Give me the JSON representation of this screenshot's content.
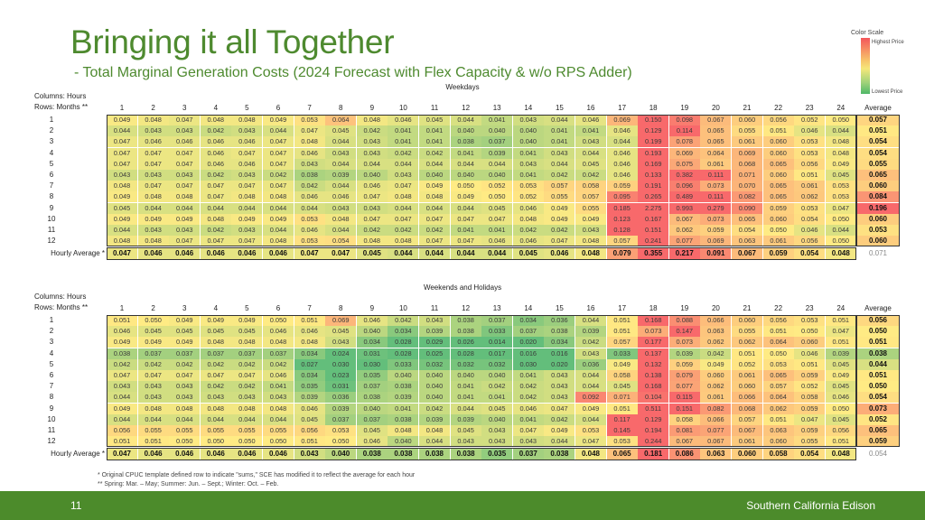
{
  "title": "Bringing it all Together",
  "subtitle": "- Total Marginal Generation Costs (2024 Forecast with Flex Capacity & w/o RPS Adder)",
  "legend": {
    "title": "Color Scale",
    "high": "Highest Price",
    "low": "Lowest Price",
    "high_color": "#f4555b",
    "low_color": "#4fb868"
  },
  "labels": {
    "columns": "Columns:  Hours",
    "rows": "Rows:  Months **",
    "average": "Average",
    "hourly_average": "Hourly Average *"
  },
  "hours": [
    "1",
    "2",
    "3",
    "4",
    "5",
    "6",
    "7",
    "8",
    "9",
    "10",
    "11",
    "12",
    "13",
    "14",
    "15",
    "16",
    "17",
    "18",
    "19",
    "20",
    "21",
    "22",
    "23",
    "24"
  ],
  "weekdays": {
    "title": "Weekdays",
    "rows": [
      {
        "label": "1",
        "values": [
          "0.049",
          "0.048",
          "0.047",
          "0.048",
          "0.048",
          "0.049",
          "0.053",
          "0.064",
          "0.048",
          "0.046",
          "0.045",
          "0.044",
          "0.041",
          "0.043",
          "0.044",
          "0.046",
          "0.069",
          "0.150",
          "0.098",
          "0.067",
          "0.060",
          "0.056",
          "0.052",
          "0.050"
        ],
        "avg": "0.057"
      },
      {
        "label": "2",
        "values": [
          "0.044",
          "0.043",
          "0.043",
          "0.042",
          "0.043",
          "0.044",
          "0.047",
          "0.045",
          "0.042",
          "0.041",
          "0.041",
          "0.040",
          "0.040",
          "0.040",
          "0.041",
          "0.041",
          "0.046",
          "0.129",
          "0.114",
          "0.065",
          "0.055",
          "0.051",
          "0.046",
          "0.044"
        ],
        "avg": "0.051"
      },
      {
        "label": "3",
        "values": [
          "0.047",
          "0.046",
          "0.046",
          "0.046",
          "0.046",
          "0.047",
          "0.048",
          "0.044",
          "0.043",
          "0.041",
          "0.041",
          "0.038",
          "0.037",
          "0.040",
          "0.041",
          "0.043",
          "0.044",
          "0.199",
          "0.078",
          "0.065",
          "0.061",
          "0.060",
          "0.053",
          "0.048"
        ],
        "avg": "0.054"
      },
      {
        "label": "4",
        "values": [
          "0.047",
          "0.047",
          "0.047",
          "0.046",
          "0.047",
          "0.047",
          "0.046",
          "0.043",
          "0.043",
          "0.042",
          "0.042",
          "0.041",
          "0.039",
          "0.041",
          "0.043",
          "0.044",
          "0.046",
          "0.193",
          "0.069",
          "0.064",
          "0.069",
          "0.060",
          "0.053",
          "0.048"
        ],
        "avg": "0.054"
      },
      {
        "label": "5",
        "values": [
          "0.047",
          "0.047",
          "0.047",
          "0.046",
          "0.046",
          "0.047",
          "0.043",
          "0.044",
          "0.044",
          "0.044",
          "0.044",
          "0.044",
          "0.044",
          "0.043",
          "0.044",
          "0.045",
          "0.046",
          "0.169",
          "0.075",
          "0.061",
          "0.068",
          "0.065",
          "0.056",
          "0.049"
        ],
        "avg": "0.055"
      },
      {
        "label": "6",
        "values": [
          "0.043",
          "0.043",
          "0.043",
          "0.042",
          "0.043",
          "0.042",
          "0.038",
          "0.039",
          "0.040",
          "0.043",
          "0.040",
          "0.040",
          "0.040",
          "0.041",
          "0.042",
          "0.042",
          "0.046",
          "0.133",
          "0.382",
          "0.111",
          "0.071",
          "0.060",
          "0.051",
          "0.045"
        ],
        "avg": "0.065"
      },
      {
        "label": "7",
        "values": [
          "0.048",
          "0.047",
          "0.047",
          "0.047",
          "0.047",
          "0.047",
          "0.042",
          "0.044",
          "0.046",
          "0.047",
          "0.049",
          "0.050",
          "0.052",
          "0.053",
          "0.057",
          "0.058",
          "0.059",
          "0.191",
          "0.096",
          "0.073",
          "0.070",
          "0.065",
          "0.061",
          "0.053"
        ],
        "avg": "0.060"
      },
      {
        "label": "8",
        "values": [
          "0.049",
          "0.048",
          "0.048",
          "0.047",
          "0.048",
          "0.048",
          "0.046",
          "0.046",
          "0.047",
          "0.048",
          "0.048",
          "0.049",
          "0.050",
          "0.052",
          "0.055",
          "0.057",
          "0.095",
          "0.265",
          "0.489",
          "0.111",
          "0.082",
          "0.065",
          "0.062",
          "0.053"
        ],
        "avg": "0.084"
      },
      {
        "label": "9",
        "values": [
          "0.045",
          "0.044",
          "0.044",
          "0.044",
          "0.044",
          "0.044",
          "0.044",
          "0.043",
          "0.043",
          "0.044",
          "0.044",
          "0.044",
          "0.045",
          "0.046",
          "0.049",
          "0.055",
          "0.185",
          "2.275",
          "0.993",
          "0.279",
          "0.090",
          "0.059",
          "0.053",
          "0.047"
        ],
        "avg": "0.196"
      },
      {
        "label": "10",
        "values": [
          "0.049",
          "0.049",
          "0.049",
          "0.048",
          "0.049",
          "0.049",
          "0.053",
          "0.048",
          "0.047",
          "0.047",
          "0.047",
          "0.047",
          "0.047",
          "0.048",
          "0.049",
          "0.049",
          "0.123",
          "0.167",
          "0.067",
          "0.073",
          "0.065",
          "0.060",
          "0.054",
          "0.050"
        ],
        "avg": "0.060"
      },
      {
        "label": "11",
        "values": [
          "0.044",
          "0.043",
          "0.043",
          "0.042",
          "0.043",
          "0.044",
          "0.046",
          "0.044",
          "0.042",
          "0.042",
          "0.042",
          "0.041",
          "0.041",
          "0.042",
          "0.042",
          "0.043",
          "0.128",
          "0.151",
          "0.062",
          "0.059",
          "0.054",
          "0.050",
          "0.046",
          "0.044"
        ],
        "avg": "0.053"
      },
      {
        "label": "12",
        "values": [
          "0.048",
          "0.048",
          "0.047",
          "0.047",
          "0.047",
          "0.048",
          "0.053",
          "0.054",
          "0.048",
          "0.048",
          "0.047",
          "0.047",
          "0.046",
          "0.046",
          "0.047",
          "0.048",
          "0.057",
          "0.241",
          "0.077",
          "0.069",
          "0.063",
          "0.061",
          "0.056",
          "0.050"
        ],
        "avg": "0.060"
      }
    ],
    "hourly": [
      "0.047",
      "0.046",
      "0.046",
      "0.046",
      "0.046",
      "0.046",
      "0.047",
      "0.047",
      "0.045",
      "0.044",
      "0.044",
      "0.044",
      "0.044",
      "0.045",
      "0.046",
      "0.048",
      "0.079",
      "0.355",
      "0.217",
      "0.091",
      "0.067",
      "0.059",
      "0.054",
      "0.048"
    ],
    "total": "0.071"
  },
  "weekends": {
    "title": "Weekends and Holidays",
    "rows": [
      {
        "label": "1",
        "values": [
          "0.051",
          "0.050",
          "0.049",
          "0.049",
          "0.049",
          "0.050",
          "0.051",
          "0.069",
          "0.046",
          "0.042",
          "0.043",
          "0.038",
          "0.037",
          "0.034",
          "0.036",
          "0.044",
          "0.051",
          "0.168",
          "0.088",
          "0.066",
          "0.060",
          "0.056",
          "0.053",
          "0.051"
        ],
        "avg": "0.056"
      },
      {
        "label": "2",
        "values": [
          "0.046",
          "0.045",
          "0.045",
          "0.045",
          "0.045",
          "0.046",
          "0.046",
          "0.045",
          "0.040",
          "0.034",
          "0.039",
          "0.038",
          "0.033",
          "0.037",
          "0.038",
          "0.039",
          "0.051",
          "0.073",
          "0.147",
          "0.063",
          "0.055",
          "0.051",
          "0.050",
          "0.047"
        ],
        "avg": "0.050"
      },
      {
        "label": "3",
        "values": [
          "0.049",
          "0.049",
          "0.049",
          "0.048",
          "0.048",
          "0.048",
          "0.048",
          "0.043",
          "0.034",
          "0.028",
          "0.029",
          "0.026",
          "0.014",
          "0.020",
          "0.034",
          "0.042",
          "0.057",
          "0.177",
          "0.073",
          "0.062",
          "0.062",
          "0.064",
          "0.060",
          "0.051"
        ],
        "avg": "0.051"
      },
      {
        "label": "4",
        "values": [
          "0.038",
          "0.037",
          "0.037",
          "0.037",
          "0.037",
          "0.037",
          "0.034",
          "0.024",
          "0.031",
          "0.028",
          "0.025",
          "0.028",
          "0.017",
          "0.016",
          "0.016",
          "0.043",
          "0.033",
          "0.137",
          "0.039",
          "0.042",
          "0.051",
          "0.050",
          "0.046",
          "0.039"
        ],
        "avg": "0.038"
      },
      {
        "label": "5",
        "values": [
          "0.042",
          "0.042",
          "0.042",
          "0.042",
          "0.042",
          "0.042",
          "0.027",
          "0.030",
          "0.030",
          "0.033",
          "0.032",
          "0.032",
          "0.032",
          "0.030",
          "0.020",
          "0.036",
          "0.049",
          "0.132",
          "0.059",
          "0.049",
          "0.052",
          "0.053",
          "0.051",
          "0.045"
        ],
        "avg": "0.044"
      },
      {
        "label": "6",
        "values": [
          "0.047",
          "0.047",
          "0.047",
          "0.047",
          "0.047",
          "0.046",
          "0.034",
          "0.023",
          "0.035",
          "0.040",
          "0.040",
          "0.040",
          "0.040",
          "0.041",
          "0.043",
          "0.044",
          "0.058",
          "0.138",
          "0.079",
          "0.060",
          "0.061",
          "0.065",
          "0.059",
          "0.049"
        ],
        "avg": "0.051"
      },
      {
        "label": "7",
        "values": [
          "0.043",
          "0.043",
          "0.043",
          "0.042",
          "0.042",
          "0.041",
          "0.035",
          "0.031",
          "0.037",
          "0.038",
          "0.040",
          "0.041",
          "0.042",
          "0.042",
          "0.043",
          "0.044",
          "0.045",
          "0.168",
          "0.077",
          "0.062",
          "0.060",
          "0.057",
          "0.052",
          "0.045"
        ],
        "avg": "0.050"
      },
      {
        "label": "8",
        "values": [
          "0.044",
          "0.043",
          "0.043",
          "0.043",
          "0.043",
          "0.043",
          "0.039",
          "0.036",
          "0.038",
          "0.039",
          "0.040",
          "0.041",
          "0.041",
          "0.042",
          "0.043",
          "0.092",
          "0.071",
          "0.104",
          "0.115",
          "0.061",
          "0.066",
          "0.064",
          "0.058",
          "0.046"
        ],
        "avg": "0.054"
      },
      {
        "label": "9",
        "values": [
          "0.049",
          "0.048",
          "0.048",
          "0.048",
          "0.048",
          "0.048",
          "0.046",
          "0.039",
          "0.040",
          "0.041",
          "0.042",
          "0.044",
          "0.045",
          "0.046",
          "0.047",
          "0.049",
          "0.051",
          "0.511",
          "0.151",
          "0.082",
          "0.068",
          "0.062",
          "0.059",
          "0.050"
        ],
        "avg": "0.073"
      },
      {
        "label": "10",
        "values": [
          "0.044",
          "0.044",
          "0.044",
          "0.044",
          "0.044",
          "0.044",
          "0.045",
          "0.037",
          "0.037",
          "0.038",
          "0.039",
          "0.039",
          "0.040",
          "0.041",
          "0.042",
          "0.044",
          "0.117",
          "0.129",
          "0.058",
          "0.066",
          "0.057",
          "0.051",
          "0.047",
          "0.045"
        ],
        "avg": "0.052"
      },
      {
        "label": "11",
        "values": [
          "0.056",
          "0.055",
          "0.055",
          "0.055",
          "0.055",
          "0.055",
          "0.056",
          "0.053",
          "0.045",
          "0.048",
          "0.048",
          "0.045",
          "0.043",
          "0.047",
          "0.049",
          "0.053",
          "0.145",
          "0.194",
          "0.081",
          "0.077",
          "0.067",
          "0.063",
          "0.059",
          "0.056"
        ],
        "avg": "0.065"
      },
      {
        "label": "12",
        "values": [
          "0.051",
          "0.051",
          "0.050",
          "0.050",
          "0.050",
          "0.050",
          "0.051",
          "0.050",
          "0.046",
          "0.040",
          "0.044",
          "0.043",
          "0.043",
          "0.043",
          "0.044",
          "0.047",
          "0.053",
          "0.244",
          "0.067",
          "0.067",
          "0.061",
          "0.060",
          "0.055",
          "0.051"
        ],
        "avg": "0.059"
      }
    ],
    "hourly": [
      "0.047",
      "0.046",
      "0.046",
      "0.046",
      "0.046",
      "0.046",
      "0.043",
      "0.040",
      "0.038",
      "0.038",
      "0.038",
      "0.038",
      "0.035",
      "0.037",
      "0.038",
      "0.048",
      "0.065",
      "0.181",
      "0.086",
      "0.063",
      "0.060",
      "0.058",
      "0.054",
      "0.048"
    ],
    "total": "0.054"
  },
  "footnotes": {
    "note1": "* Original CPUC template defined row to indicate \"sums,\" SCE has modified it to reflect the average for each hour",
    "note2": "**  Spring:  Mar. – May; Summer:  Jun. – Sept.; Winter:  Oct. – Feb."
  },
  "footer": {
    "page_number": "11",
    "brand": "Southern California Edison",
    "color": "#4c8b2b"
  }
}
